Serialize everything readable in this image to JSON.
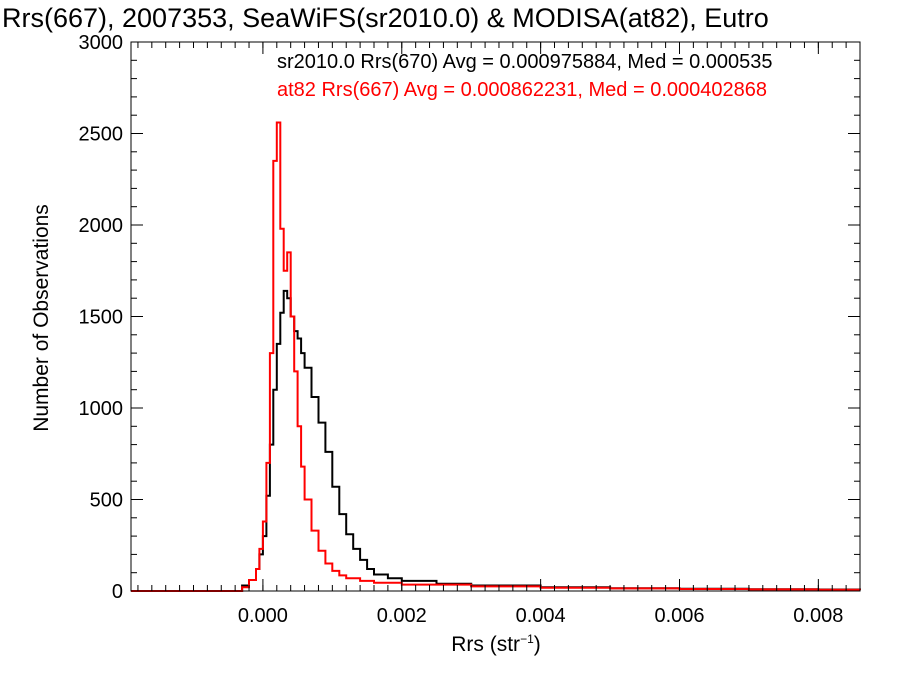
{
  "chart_data": {
    "type": "line",
    "title": "Rrs(667), 2007353, SeaWiFS(sr2010.0) & MODISA(at82), Eutro",
    "xlabel": {
      "base": "Rrs (str",
      "sup": "−1",
      "close": ")"
    },
    "ylabel": "Number of Observations",
    "xlim": [
      -0.0019,
      0.0086
    ],
    "ylim": [
      0,
      3000
    ],
    "xticks": [
      0.0,
      0.002,
      0.004,
      0.006,
      0.008
    ],
    "xtick_labels": [
      "0.000",
      "0.002",
      "0.004",
      "0.006",
      "0.008"
    ],
    "yticks": [
      0,
      500,
      1000,
      1500,
      2000,
      2500,
      3000
    ],
    "ytick_labels": [
      "0",
      "500",
      "1000",
      "1500",
      "2000",
      "2500",
      "3000"
    ],
    "grid": false,
    "legend_position": "top-right",
    "series": [
      {
        "name": "sr2010.0 Rrs(670) Avg = 0.000975884, Med = 0.000535",
        "color": "#000000",
        "x": [
          -0.0019,
          -0.0008,
          -0.0003,
          -0.0002,
          -0.0001,
          -5e-05,
          0.0,
          5e-05,
          0.0001,
          0.00015,
          0.0002,
          0.00025,
          0.0003,
          0.00035,
          0.0004,
          0.00045,
          0.0005,
          0.00055,
          0.0006,
          0.0007,
          0.0008,
          0.0009,
          0.001,
          0.0011,
          0.0012,
          0.0013,
          0.0014,
          0.0015,
          0.0016,
          0.0018,
          0.002,
          0.0025,
          0.003,
          0.004,
          0.005,
          0.006,
          0.007,
          0.008,
          0.0086
        ],
        "y": [
          0,
          0,
          30,
          60,
          120,
          200,
          300,
          520,
          800,
          1100,
          1350,
          1520,
          1640,
          1600,
          1500,
          1420,
          1380,
          1300,
          1220,
          1060,
          920,
          760,
          570,
          420,
          310,
          230,
          170,
          120,
          90,
          70,
          55,
          40,
          30,
          20,
          15,
          12,
          10,
          8,
          5
        ]
      },
      {
        "name": "at82 Rrs(667) Avg = 0.000862231, Med = 0.000402868",
        "color": "#ff0000",
        "x": [
          -0.0019,
          -0.0006,
          -0.0003,
          -0.0002,
          -0.0001,
          -5e-05,
          0.0,
          5e-05,
          0.0001,
          0.00015,
          0.0002,
          0.00025,
          0.0003,
          0.00035,
          0.0004,
          0.00045,
          0.0005,
          0.00055,
          0.0006,
          0.0007,
          0.0008,
          0.0009,
          0.001,
          0.0011,
          0.0012,
          0.0014,
          0.0016,
          0.002,
          0.003,
          0.004,
          0.005,
          0.006,
          0.007,
          0.008,
          0.0086
        ],
        "y": [
          0,
          0,
          20,
          60,
          120,
          230,
          380,
          700,
          1300,
          2350,
          2560,
          1980,
          1750,
          1850,
          1500,
          1200,
          900,
          680,
          500,
          330,
          220,
          150,
          110,
          85,
          70,
          55,
          45,
          35,
          25,
          18,
          14,
          11,
          9,
          7,
          5
        ]
      }
    ]
  }
}
